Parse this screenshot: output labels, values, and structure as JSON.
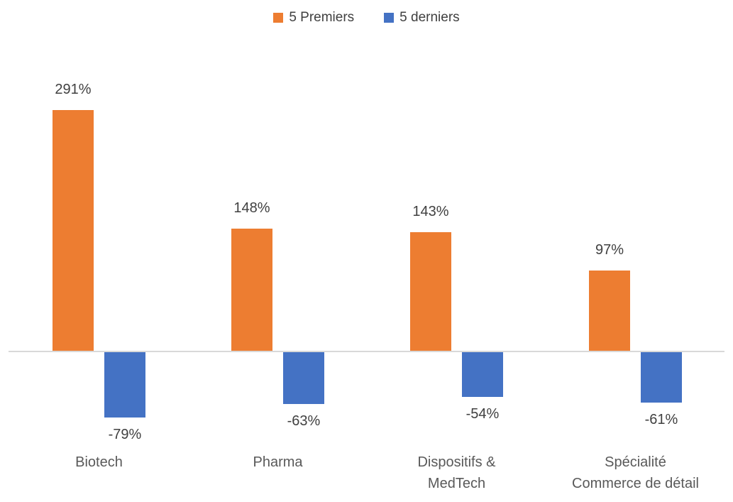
{
  "legend": {
    "items": [
      {
        "label": "5 Premiers",
        "color": "#ED7D31"
      },
      {
        "label": "5 derniers",
        "color": "#4472C4"
      }
    ]
  },
  "chart_data": {
    "type": "bar",
    "title": "",
    "categories": [
      "Biotech",
      "Pharma",
      "Dispositifs & MedTech",
      "Spécialité Commerce de détail"
    ],
    "categories_display": [
      [
        "Biotech"
      ],
      [
        "Pharma"
      ],
      [
        "Dispositifs &",
        "MedTech"
      ],
      [
        "Spécialité",
        "Commerce de détail"
      ]
    ],
    "series": [
      {
        "name": "5 Premiers",
        "color": "#ED7D31",
        "values": [
          291,
          148,
          143,
          97
        ],
        "data_labels": [
          "291%",
          "148%",
          "143%",
          "97%"
        ]
      },
      {
        "name": "5 derniers",
        "color": "#4472C4",
        "values": [
          -79,
          -63,
          -54,
          -61
        ],
        "data_labels": [
          "-79%",
          "-63%",
          "-54%",
          "-61%"
        ]
      }
    ],
    "ylim": [
      -100,
      300
    ],
    "grid": false,
    "legend_position": "top",
    "axis_color": "#D9D9D9",
    "data_label_color": "#404040",
    "category_label_color": "#595959",
    "xlabel": "",
    "ylabel": ""
  }
}
